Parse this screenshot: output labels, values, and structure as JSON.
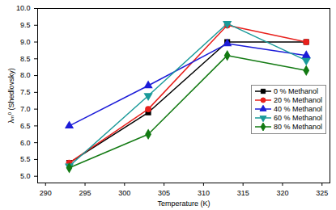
{
  "chart_data": {
    "type": "line",
    "x_label": "Temperature (K)",
    "y_label": "λₘ⁰ (Shedlovsky)",
    "x": [
      293,
      303,
      313,
      323
    ],
    "series": [
      {
        "name": "0 % Methanol",
        "color": "#000000",
        "marker": "square",
        "values": [
          5.4,
          6.9,
          9.0,
          9.0
        ]
      },
      {
        "name": "20 % Methanol",
        "color": "#e8201c",
        "marker": "circle",
        "values": [
          5.4,
          7.0,
          9.5,
          9.0
        ]
      },
      {
        "name": "40 % Methanol",
        "color": "#1c1cd8",
        "marker": "triangle",
        "values": [
          6.5,
          7.7,
          8.95,
          8.6
        ]
      },
      {
        "name": "60 % Methanol",
        "color": "#1a9a9a",
        "marker": "triangle-down",
        "values": [
          5.3,
          7.4,
          9.55,
          8.45
        ]
      },
      {
        "name": "80 % Methanol",
        "color": "#137a13",
        "marker": "diamond",
        "values": [
          5.25,
          6.25,
          8.6,
          8.15
        ]
      }
    ],
    "xlim": [
      289,
      326
    ],
    "xticks": [
      290,
      295,
      300,
      305,
      310,
      315,
      320,
      325
    ],
    "ylim": [
      4.8,
      10.0
    ],
    "yticks": [
      {
        "value": 5,
        "label": "5.0"
      },
      5.5,
      {
        "value": 6,
        "label": "6.0"
      },
      6.5,
      {
        "value": 7,
        "label": "7.0"
      },
      7.5,
      {
        "value": 8,
        "label": "8.0"
      },
      8.5,
      {
        "value": 9,
        "label": "9.0"
      },
      9.5,
      {
        "value": 10,
        "label": "10.0"
      }
    ],
    "grid": false,
    "legend": "right"
  }
}
